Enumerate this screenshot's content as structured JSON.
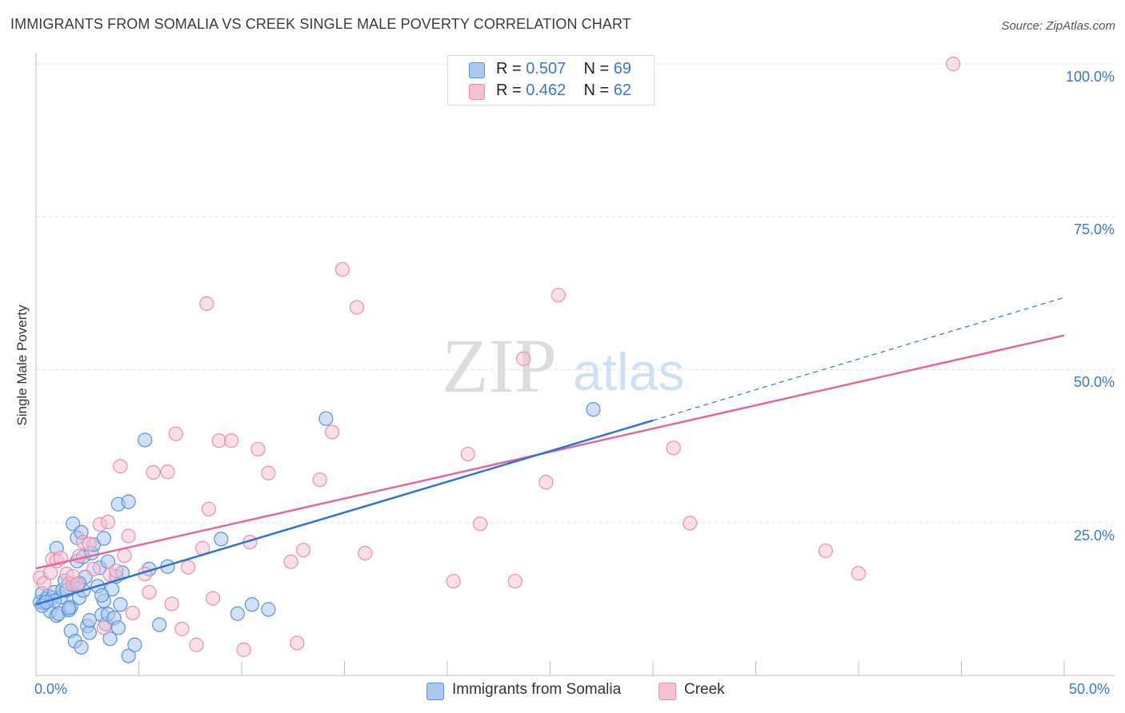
{
  "title": "IMMIGRANTS FROM SOMALIA VS CREEK SINGLE MALE POVERTY CORRELATION CHART",
  "source": "Source: ZipAtlas.com",
  "watermark": {
    "zip": "ZIP",
    "atlas": "atlas"
  },
  "legend": [
    {
      "r_label": "R =",
      "r_value": "0.507",
      "n_label": "N =",
      "n_value": "69"
    },
    {
      "r_label": "R =",
      "r_value": "0.462",
      "n_label": "N =",
      "n_value": "62"
    }
  ],
  "chart_data": {
    "type": "scatter",
    "title": "IMMIGRANTS FROM SOMALIA VS CREEK SINGLE MALE POVERTY CORRELATION CHART",
    "xlabel": "",
    "ylabel": "Single Male Poverty",
    "xlim": [
      0,
      50
    ],
    "ylim": [
      0,
      100
    ],
    "x_tick_labels": [
      "0.0%",
      "50.0%"
    ],
    "y_ticks": [
      25,
      50,
      75,
      100
    ],
    "y_tick_labels": [
      "25.0%",
      "50.0%",
      "75.0%",
      "100.0%"
    ],
    "grid": true,
    "colors": {
      "blue_fill": "#a9c8f0",
      "blue_stroke": "#5b92d6",
      "blue_line": "#2f73cf",
      "pink_fill": "#f6bfd2",
      "pink_stroke": "#e88fae",
      "pink_line": "#e2679a",
      "tick_text": "#3a78c9"
    },
    "series": [
      {
        "name": "Immigrants from Somalia",
        "color": "#a9c8f0",
        "r": 0.507,
        "n": 69,
        "trend": {
          "x0": 0,
          "y0": 11.6,
          "x1": 30,
          "y1": 41.7,
          "dashed_to_x": 50,
          "dashed_to_y": 61.8
        },
        "points": [
          [
            0.2,
            12.0
          ],
          [
            0.3,
            13.4
          ],
          [
            0.4,
            11.8
          ],
          [
            0.5,
            12.5
          ],
          [
            0.6,
            13.0
          ],
          [
            0.7,
            10.5
          ],
          [
            0.8,
            12.7
          ],
          [
            0.9,
            13.6
          ],
          [
            1.0,
            9.8
          ],
          [
            1.1,
            10.1
          ],
          [
            1.0,
            20.8
          ],
          [
            1.2,
            12.8
          ],
          [
            1.3,
            14.0
          ],
          [
            1.4,
            15.5
          ],
          [
            1.5,
            13.9
          ],
          [
            1.6,
            10.7
          ],
          [
            1.7,
            11.2
          ],
          [
            1.8,
            14.8
          ],
          [
            1.7,
            7.3
          ],
          [
            1.8,
            24.8
          ],
          [
            1.9,
            5.6
          ],
          [
            2.0,
            22.5
          ],
          [
            2.1,
            12.7
          ],
          [
            2.2,
            23.4
          ],
          [
            2.0,
            18.7
          ],
          [
            2.2,
            4.6
          ],
          [
            2.3,
            19.4
          ],
          [
            2.4,
            16.1
          ],
          [
            2.5,
            8.1
          ],
          [
            2.6,
            7.0
          ],
          [
            2.7,
            20.0
          ],
          [
            2.6,
            9.0
          ],
          [
            2.8,
            21.4
          ],
          [
            3.0,
            14.6
          ],
          [
            3.1,
            17.6
          ],
          [
            3.2,
            9.9
          ],
          [
            3.3,
            22.4
          ],
          [
            3.3,
            12.2
          ],
          [
            3.4,
            8.4
          ],
          [
            3.5,
            10.0
          ],
          [
            3.5,
            18.6
          ],
          [
            3.7,
            14.1
          ],
          [
            3.6,
            6.0
          ],
          [
            3.8,
            9.4
          ],
          [
            3.9,
            16.2
          ],
          [
            4.0,
            7.8
          ],
          [
            4.1,
            11.6
          ],
          [
            4.2,
            16.8
          ],
          [
            4.0,
            28.0
          ],
          [
            4.5,
            28.4
          ],
          [
            4.5,
            3.2
          ],
          [
            4.8,
            5.0
          ],
          [
            5.3,
            38.5
          ],
          [
            5.5,
            17.4
          ],
          [
            6.0,
            8.3
          ],
          [
            6.4,
            17.8
          ],
          [
            9.0,
            22.3
          ],
          [
            9.8,
            10.1
          ],
          [
            10.5,
            11.6
          ],
          [
            11.3,
            10.8
          ],
          [
            14.1,
            42.0
          ],
          [
            27.1,
            43.5
          ],
          [
            0.3,
            11.4
          ],
          [
            0.9,
            12.2
          ],
          [
            2.3,
            13.9
          ],
          [
            0.5,
            12.0
          ],
          [
            3.2,
            13.1
          ],
          [
            1.6,
            11.0
          ],
          [
            2.1,
            15.1
          ]
        ]
      },
      {
        "name": "Creek",
        "color": "#f6bfd2",
        "r": 0.462,
        "n": 62,
        "trend": {
          "x0": 0,
          "y0": 17.5,
          "x1": 50,
          "y1": 55.6
        },
        "points": [
          [
            0.2,
            16.0
          ],
          [
            0.4,
            15.1
          ],
          [
            0.7,
            16.8
          ],
          [
            0.8,
            19.0
          ],
          [
            1.0,
            18.7
          ],
          [
            1.2,
            19.2
          ],
          [
            1.5,
            16.6
          ],
          [
            1.6,
            15.0
          ],
          [
            1.8,
            16.2
          ],
          [
            2.0,
            14.9
          ],
          [
            2.1,
            19.5
          ],
          [
            2.3,
            21.8
          ],
          [
            2.6,
            21.5
          ],
          [
            2.8,
            17.4
          ],
          [
            3.1,
            24.7
          ],
          [
            3.3,
            7.8
          ],
          [
            3.5,
            25.1
          ],
          [
            3.6,
            16.5
          ],
          [
            3.9,
            17.1
          ],
          [
            4.1,
            34.2
          ],
          [
            4.3,
            19.6
          ],
          [
            4.5,
            22.8
          ],
          [
            4.7,
            10.2
          ],
          [
            5.3,
            16.6
          ],
          [
            5.5,
            13.6
          ],
          [
            5.7,
            33.2
          ],
          [
            6.4,
            33.3
          ],
          [
            6.6,
            11.7
          ],
          [
            6.8,
            39.5
          ],
          [
            7.1,
            7.6
          ],
          [
            7.4,
            17.7
          ],
          [
            7.8,
            5.0
          ],
          [
            8.1,
            20.8
          ],
          [
            8.3,
            60.8
          ],
          [
            8.4,
            27.2
          ],
          [
            8.6,
            12.6
          ],
          [
            8.9,
            38.4
          ],
          [
            9.5,
            38.4
          ],
          [
            10.1,
            4.2
          ],
          [
            10.4,
            21.8
          ],
          [
            10.8,
            37.0
          ],
          [
            11.3,
            33.1
          ],
          [
            12.4,
            18.6
          ],
          [
            12.7,
            5.3
          ],
          [
            13.0,
            20.5
          ],
          [
            13.8,
            32.0
          ],
          [
            14.4,
            39.8
          ],
          [
            14.9,
            66.4
          ],
          [
            15.6,
            60.2
          ],
          [
            16.0,
            20.0
          ],
          [
            20.3,
            15.4
          ],
          [
            21.0,
            36.2
          ],
          [
            21.6,
            24.8
          ],
          [
            23.3,
            15.4
          ],
          [
            23.7,
            51.8
          ],
          [
            24.8,
            31.6
          ],
          [
            25.4,
            62.2
          ],
          [
            31.0,
            37.2
          ],
          [
            31.8,
            24.9
          ],
          [
            38.4,
            20.4
          ],
          [
            40.0,
            16.7
          ],
          [
            44.6,
            100.0
          ]
        ]
      }
    ]
  },
  "bottom_legend": [
    {
      "label": "Immigrants from Somalia"
    },
    {
      "label": "Creek"
    }
  ]
}
